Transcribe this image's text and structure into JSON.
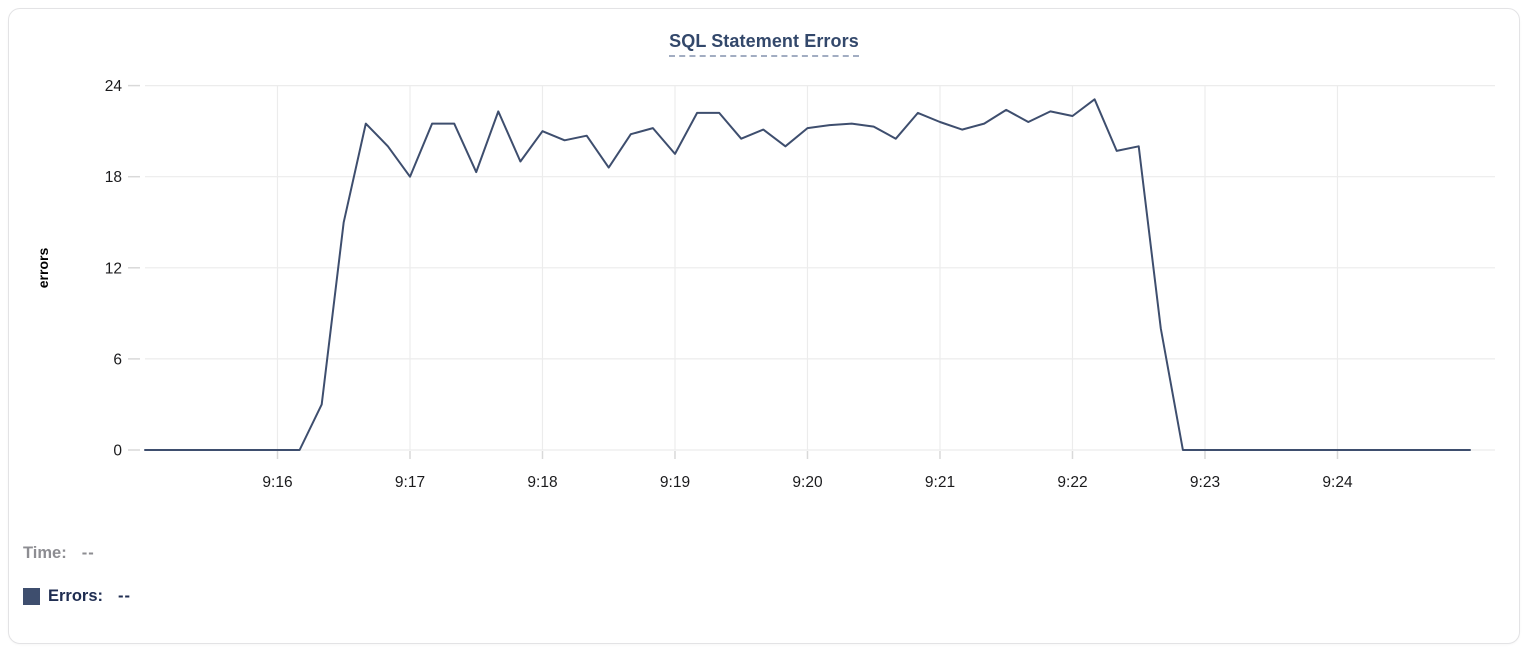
{
  "chart_data": {
    "type": "line",
    "title": "SQL Statement Errors",
    "xlabel": "",
    "ylabel": "errors",
    "ylim": [
      0,
      24
    ],
    "yticks": [
      0,
      6,
      12,
      18,
      24
    ],
    "xticks": [
      "9:16",
      "9:17",
      "9:18",
      "9:19",
      "9:20",
      "9:21",
      "9:22",
      "9:23",
      "9:24"
    ],
    "x_start": "9:15:00",
    "x_end": "9:25:00",
    "x_interval_seconds": 10,
    "grid": true,
    "legend_position": "bottom-left",
    "series": [
      {
        "name": "Errors",
        "color": "#3e4e6e",
        "values": [
          0,
          0,
          0,
          0,
          0,
          0,
          0,
          0,
          3,
          15,
          21.5,
          20,
          18,
          21.5,
          21.5,
          18.3,
          22.3,
          19,
          21,
          20.4,
          20.7,
          18.6,
          20.8,
          21.2,
          19.5,
          22.2,
          22.2,
          20.5,
          21.1,
          20,
          21.2,
          21.4,
          21.5,
          21.3,
          20.5,
          22.2,
          21.6,
          21.1,
          21.5,
          22.4,
          21.6,
          22.3,
          22,
          23.1,
          19.7,
          20,
          8,
          0,
          0,
          0,
          0,
          0,
          0,
          0,
          0,
          0,
          0,
          0,
          0,
          0,
          0
        ]
      }
    ]
  },
  "legend": {
    "time_label": "Time:",
    "time_value": "--",
    "errors_label": "Errors:",
    "errors_value": "--"
  },
  "colors": {
    "series": "#3e4e6e",
    "title": "#33486b",
    "title_underline": "#a2adc2",
    "grid": "#ececec",
    "tick": "#d9d9d9",
    "axis_text": "#1b1b1d",
    "axis_label": "#000000",
    "legend_gray": "#8d8d92",
    "legend_navy": "#202e52",
    "panel_border": "#e3e3e5"
  }
}
